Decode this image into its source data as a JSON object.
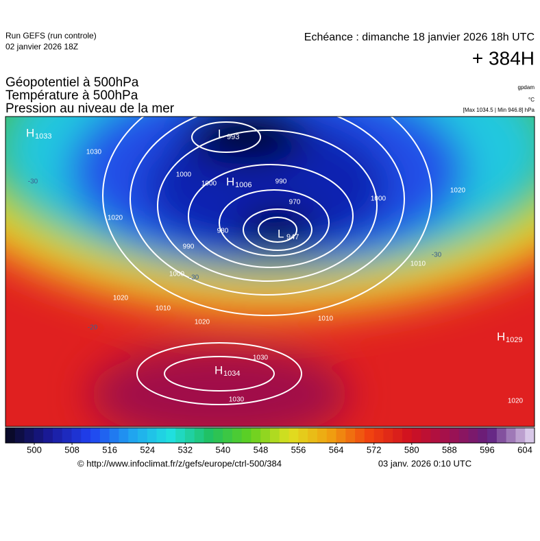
{
  "header": {
    "run": "Run GEFS (run controle)",
    "date": "02 janvier 2026 18Z",
    "echeance": "Echéance : dimanche 18 janvier 2026 18h UTC",
    "lead": "+ 384H"
  },
  "titles": [
    "Géopotentiel à 500hPa",
    "Température à 500hPa",
    "Pression au niveau de la mer"
  ],
  "units": [
    "gpdam",
    "°C",
    "[Max 1034.5 | Min 946.8] hPa"
  ],
  "colorbar": {
    "ticks": [
      500,
      508,
      516,
      524,
      532,
      540,
      548,
      556,
      564,
      572,
      580,
      588,
      596,
      604
    ],
    "colors": [
      "#0a0a2a",
      "#1a1a9a",
      "#2040f0",
      "#20a0f0",
      "#20e0e0",
      "#20c060",
      "#60d020",
      "#e0e020",
      "#f0a010",
      "#f04010",
      "#d01020",
      "#a01050",
      "#602080",
      "#d8c8e8"
    ]
  },
  "map": {
    "centers": [
      {
        "letter": "H",
        "value": "1033"
      },
      {
        "letter": "L",
        "value": "993"
      },
      {
        "letter": "H",
        "value": "1006"
      },
      {
        "letter": "L",
        "value": "947"
      },
      {
        "letter": "H",
        "value": "1034"
      },
      {
        "letter": "H",
        "value": "1029"
      }
    ],
    "isobar_labels": [
      "1030",
      "1000",
      "1000",
      "990",
      "970",
      "980",
      "990",
      "1000",
      "1020",
      "1020",
      "1010",
      "1020",
      "1030",
      "1030",
      "1010",
      "1010",
      "1000",
      "1020",
      "1020"
    ],
    "temperature_labels": [
      "-30",
      "-30",
      "-20",
      "-30"
    ]
  },
  "footer": {
    "url": "© http://www.infoclimat.fr/z/gefs/europe/ctrl-500/384",
    "timestamp": "03 janv. 2026  0:10 UTC"
  }
}
